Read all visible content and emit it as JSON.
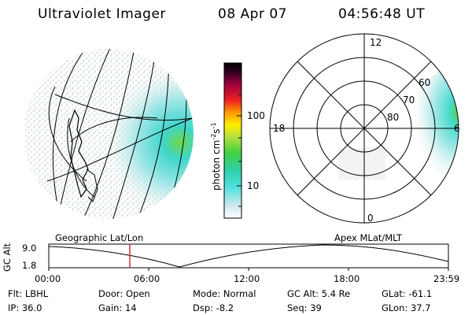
{
  "header": {
    "title": "Ultraviolet Imager",
    "date": "08 Apr 07",
    "time": "04:56:48 UT"
  },
  "colorbar": {
    "label": "photon cm",
    "label_exp": "-2",
    "label_unit": "s",
    "label_exp2": "-1",
    "ticks": [
      "100",
      "10"
    ]
  },
  "polar": {
    "lat_labels": [
      "60",
      "70",
      "80"
    ],
    "mlt_labels": [
      "12",
      "18",
      "6",
      "0"
    ]
  },
  "map_labels": {
    "left": "Geographic Lat/Lon",
    "right": "Apex MLat/MLT"
  },
  "timeline": {
    "ylabel": "GC Alt",
    "y_ticks": [
      "9.0",
      "1.8"
    ],
    "x_ticks": [
      "00:00",
      "06:00",
      "12:00",
      "18:00",
      "23:59"
    ],
    "current_marker": "04:56"
  },
  "info": {
    "filter": "Flt: LBHL",
    "ip": "IP: 36.0",
    "door": "Door: Open",
    "gain": "Gain: 14",
    "mode": "Mode: Normal",
    "dsp": "Dsp:  -8.2",
    "gc_alt": "GC Alt: 5.4 Re",
    "seq": "Seq: 39",
    "glat": "GLat: -61.1",
    "glon": "GLon:  37.7"
  },
  "colors": {
    "marker": "#d03030",
    "faint": "#d8dcd8",
    "cyan": "#48e0d8",
    "green": "#50d040"
  }
}
